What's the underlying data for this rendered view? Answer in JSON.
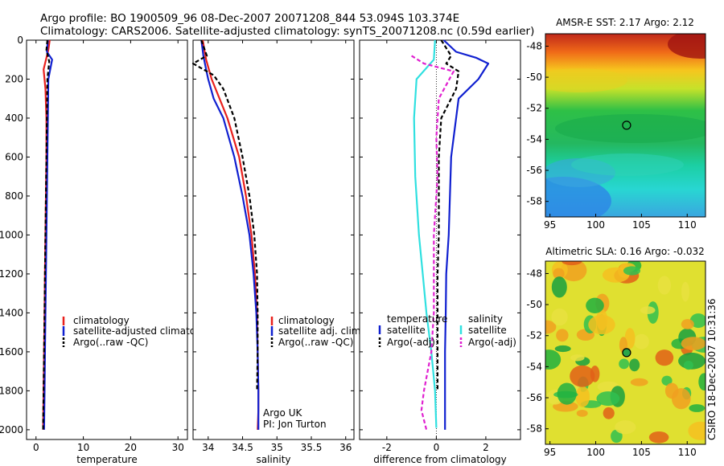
{
  "header": {
    "line1": "Argo profile: BO 1900509_96 08-Dec-2007 20071208_844 53.094S 103.374E",
    "line2": "Climatology: CARS2006. Satellite-adjusted climatology: synTS_20071208.nc (0.59d earlier)"
  },
  "side_label": "CSIRO 18-Dec-2007 10:31:36",
  "colors": {
    "red": "#e8201c",
    "blue": "#1020d0",
    "black": "#000000",
    "cyan": "#30e0e0",
    "magenta": "#e020d0"
  },
  "chart_data": [
    {
      "type": "line",
      "xlabel": "temperature",
      "xticks": [
        "0",
        "10",
        "20",
        "30"
      ],
      "xlim": [
        -2,
        32
      ],
      "ylim": [
        0,
        2050
      ],
      "yticks": [
        "0",
        "200",
        "400",
        "600",
        "800",
        "1000",
        "1200",
        "1400",
        "1600",
        "1800",
        "2000"
      ],
      "y_reversed": true,
      "legend": [
        "climatology",
        "satellite-adjusted climatology",
        "Argo(..raw -QC)"
      ],
      "series": [
        {
          "name": "climatology",
          "color": "#e8201c",
          "style": "solid",
          "x": [
            2.9,
            2.6,
            1.6,
            2.0,
            2.2,
            2.2,
            2.1,
            2.0,
            1.9,
            1.8,
            1.7,
            1.6,
            1.5
          ],
          "y": [
            0,
            50,
            150,
            250,
            400,
            600,
            800,
            1000,
            1200,
            1400,
            1600,
            1800,
            2000
          ]
        },
        {
          "name": "satellite-adjusted climatology",
          "color": "#1020d0",
          "style": "solid",
          "x": [
            2.5,
            2.3,
            3.4,
            2.6,
            2.5,
            2.4,
            2.3,
            2.2,
            2.1,
            2.0,
            1.9,
            1.8,
            1.7
          ],
          "y": [
            0,
            60,
            100,
            200,
            400,
            600,
            800,
            1000,
            1200,
            1400,
            1600,
            1800,
            2000
          ]
        },
        {
          "name": "Argo(..raw -QC)",
          "color": "#000000",
          "style": "dashed",
          "x": [
            2.4,
            2.2,
            2.8,
            2.4,
            2.3,
            2.2,
            2.1,
            2.0,
            1.9,
            1.8,
            1.7,
            1.6,
            1.5
          ],
          "y": [
            0,
            50,
            110,
            200,
            400,
            600,
            800,
            1000,
            1200,
            1400,
            1600,
            1800,
            2000
          ]
        }
      ]
    },
    {
      "type": "line",
      "xlabel": "salinity",
      "xticks": [
        "34",
        "34.5",
        "35",
        "35.5",
        "36"
      ],
      "xlim": [
        33.78,
        36.12
      ],
      "ylim": [
        0,
        2050
      ],
      "y_reversed": true,
      "legend": [
        "climatology",
        "satellite adj. clim.",
        "Argo(..raw -QC)"
      ],
      "annotation": [
        "Argo UK",
        "PI: Jon Turton"
      ],
      "series": [
        {
          "name": "climatology",
          "color": "#e8201c",
          "style": "solid",
          "x": [
            33.92,
            33.97,
            34.05,
            34.28,
            34.45,
            34.55,
            34.63,
            34.68,
            34.71,
            34.72,
            34.73,
            34.73,
            34.72
          ],
          "y": [
            0,
            100,
            200,
            400,
            600,
            800,
            1000,
            1200,
            1400,
            1600,
            1800,
            1900,
            2000
          ]
        },
        {
          "name": "satellite adj. clim.",
          "color": "#1020d0",
          "style": "solid",
          "x": [
            33.9,
            33.93,
            33.97,
            34.0,
            34.08,
            34.22,
            34.38,
            34.5,
            34.6,
            34.66,
            34.7,
            34.72,
            34.73,
            34.73
          ],
          "y": [
            0,
            80,
            150,
            200,
            300,
            400,
            600,
            800,
            1000,
            1200,
            1400,
            1600,
            1800,
            2000
          ]
        },
        {
          "name": "Argo(..raw -QC)",
          "color": "#000000",
          "style": "dashed",
          "x": [
            33.9,
            33.98,
            33.78,
            34.08,
            34.22,
            34.38,
            34.5,
            34.6,
            34.67,
            34.71,
            34.72,
            34.72,
            34.71
          ],
          "y": [
            0,
            80,
            120,
            180,
            250,
            400,
            600,
            800,
            1000,
            1200,
            1400,
            1600,
            1800
          ]
        }
      ]
    },
    {
      "type": "line",
      "xlabel": "difference from climatology",
      "xticks": [
        "-2",
        "0",
        "2"
      ],
      "xlim": [
        -3.1,
        3.4
      ],
      "ylim": [
        0,
        2050
      ],
      "y_reversed": true,
      "legend_left": {
        "title": "temperature",
        "items": [
          "satellite",
          "Argo(-adj)"
        ]
      },
      "legend_right": {
        "title": "salinity",
        "items": [
          "satellite",
          "Argo(-adj)"
        ]
      },
      "series": [
        {
          "name": "temperature satellite",
          "color": "#1020d0",
          "style": "solid",
          "x": [
            0.3,
            0.8,
            1.6,
            2.1,
            1.7,
            0.9,
            0.6,
            0.5,
            0.4,
            0.38,
            0.35,
            0.35,
            0.35
          ],
          "y": [
            0,
            60,
            90,
            120,
            200,
            300,
            600,
            1000,
            1200,
            1400,
            1600,
            1800,
            2000
          ]
        },
        {
          "name": "temperature Argo(-adj)",
          "color": "#000000",
          "style": "dashed",
          "x": [
            0.2,
            0.6,
            0.4,
            0.9,
            0.8,
            0.2,
            0.1,
            0.1,
            0.05,
            0.05,
            0.05,
            0.05
          ],
          "y": [
            0,
            80,
            120,
            160,
            250,
            400,
            600,
            1000,
            1200,
            1400,
            1600,
            1800
          ]
        },
        {
          "name": "salinity satellite",
          "color": "#30e0e0",
          "style": "solid",
          "x": [
            -0.05,
            -0.1,
            -0.8,
            -0.9,
            -0.85,
            -0.7,
            -0.55,
            -0.4,
            -0.2,
            -0.05,
            0.0
          ],
          "y": [
            0,
            100,
            200,
            400,
            700,
            1000,
            1200,
            1400,
            1600,
            1800,
            1990
          ]
        },
        {
          "name": "salinity Argo(-adj)",
          "color": "#e020d0",
          "style": "dashed",
          "x": [
            -1.0,
            -0.5,
            0.7,
            0.1,
            0.0,
            0.05,
            -0.1,
            -0.1,
            -0.2,
            -0.5,
            -0.6,
            -0.4
          ],
          "y": [
            80,
            120,
            160,
            300,
            500,
            700,
            1000,
            1400,
            1600,
            1800,
            1900,
            2000
          ]
        }
      ]
    },
    {
      "type": "heatmap",
      "title": "AMSR-E SST: 2.17 Argo: 2.12",
      "xticks": [
        "95",
        "100",
        "105",
        "110"
      ],
      "yticks": [
        "-48",
        "-50",
        "-52",
        "-54",
        "-56",
        "-58"
      ],
      "xlim": [
        94.5,
        112
      ],
      "ylim": [
        -59,
        -47.2
      ],
      "marker": {
        "x": 103.374,
        "y": -53.094
      }
    },
    {
      "type": "heatmap",
      "title": "Altimetric SLA: 0.16 Argo: -0.032",
      "xticks": [
        "95",
        "100",
        "105",
        "110"
      ],
      "yticks": [
        "-48",
        "-50",
        "-52",
        "-54",
        "-56",
        "-58"
      ],
      "xlim": [
        94.5,
        112
      ],
      "ylim": [
        -59,
        -47.2
      ],
      "marker": {
        "x": 103.374,
        "y": -53.094
      }
    }
  ]
}
